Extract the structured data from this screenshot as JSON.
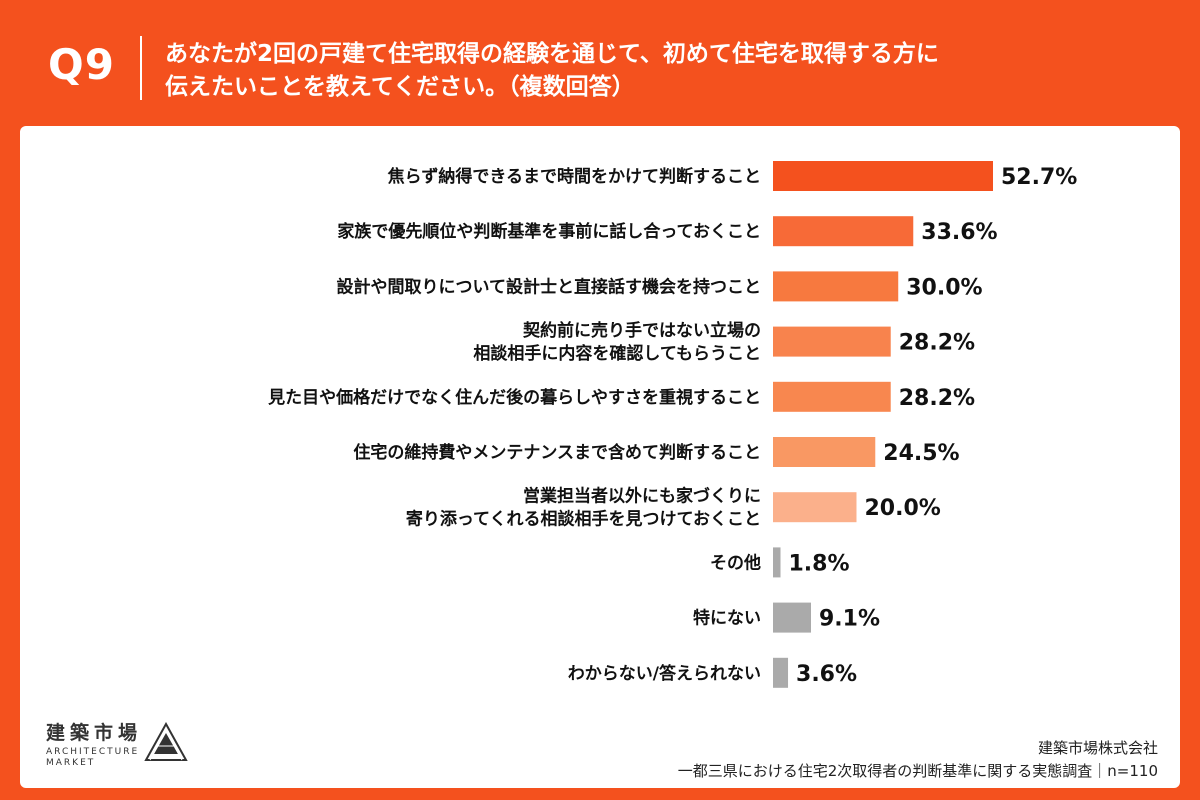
{
  "header": {
    "question_label": "Q9",
    "question_line1": "あなたが2回の戸建て住宅取得の経験を通じて、初めて住宅を取得する方に",
    "question_line2": "伝えたいことを教えてください。（複数回答）"
  },
  "colors": {
    "background": "#f4511e",
    "panel": "#ffffff",
    "bar_gradient": [
      "#f4511e",
      "#f76a37",
      "#f7793f",
      "#f8834d",
      "#f8874f",
      "#f99863",
      "#fbb08b"
    ],
    "bar_gray": "#aaaaaa"
  },
  "chart_data": {
    "type": "bar",
    "orientation": "horizontal",
    "unit": "%",
    "xlim": [
      0,
      60
    ],
    "grid": false,
    "categories": [
      [
        "焦らず納得できるまで時間をかけて判断すること"
      ],
      [
        "家族で優先順位や判断基準を事前に話し合っておくこと"
      ],
      [
        "設計や間取りについて設計士と直接話す機会を持つこと"
      ],
      [
        "契約前に売り手ではない立場の",
        "相談相手に内容を確認してもらうこと"
      ],
      [
        "見た目や価格だけでなく住んだ後の暮らしやすさを重視すること"
      ],
      [
        "住宅の維持費やメンテナンスまで含めて判断すること"
      ],
      [
        "営業担当者以外にも家づくりに",
        "寄り添ってくれる相談相手を見つけておくこと"
      ],
      [
        "その他"
      ],
      [
        "特にない"
      ],
      [
        "わからない/答えられない"
      ]
    ],
    "values": [
      52.7,
      33.6,
      30.0,
      28.2,
      28.2,
      24.5,
      20.0,
      1.8,
      9.1,
      3.6
    ],
    "value_labels": [
      "52.7%",
      "33.6%",
      "30.0%",
      "28.2%",
      "28.2%",
      "24.5%",
      "20.0%",
      "1.8%",
      "9.1%",
      "3.6%"
    ],
    "bar_colors": [
      "#f4511e",
      "#f76a37",
      "#f7793f",
      "#f8834d",
      "#f8874f",
      "#f99863",
      "#fbb08b",
      "#aaaaaa",
      "#aaaaaa",
      "#aaaaaa"
    ]
  },
  "footer": {
    "logo_text": "建築市場",
    "logo_en_line1": "ARCHITECTURE",
    "logo_en_line2": "MARKET",
    "company": "建築市場株式会社",
    "survey": "一都三県における住宅2次取得者の判断基準に関する実態調査｜n=110"
  }
}
